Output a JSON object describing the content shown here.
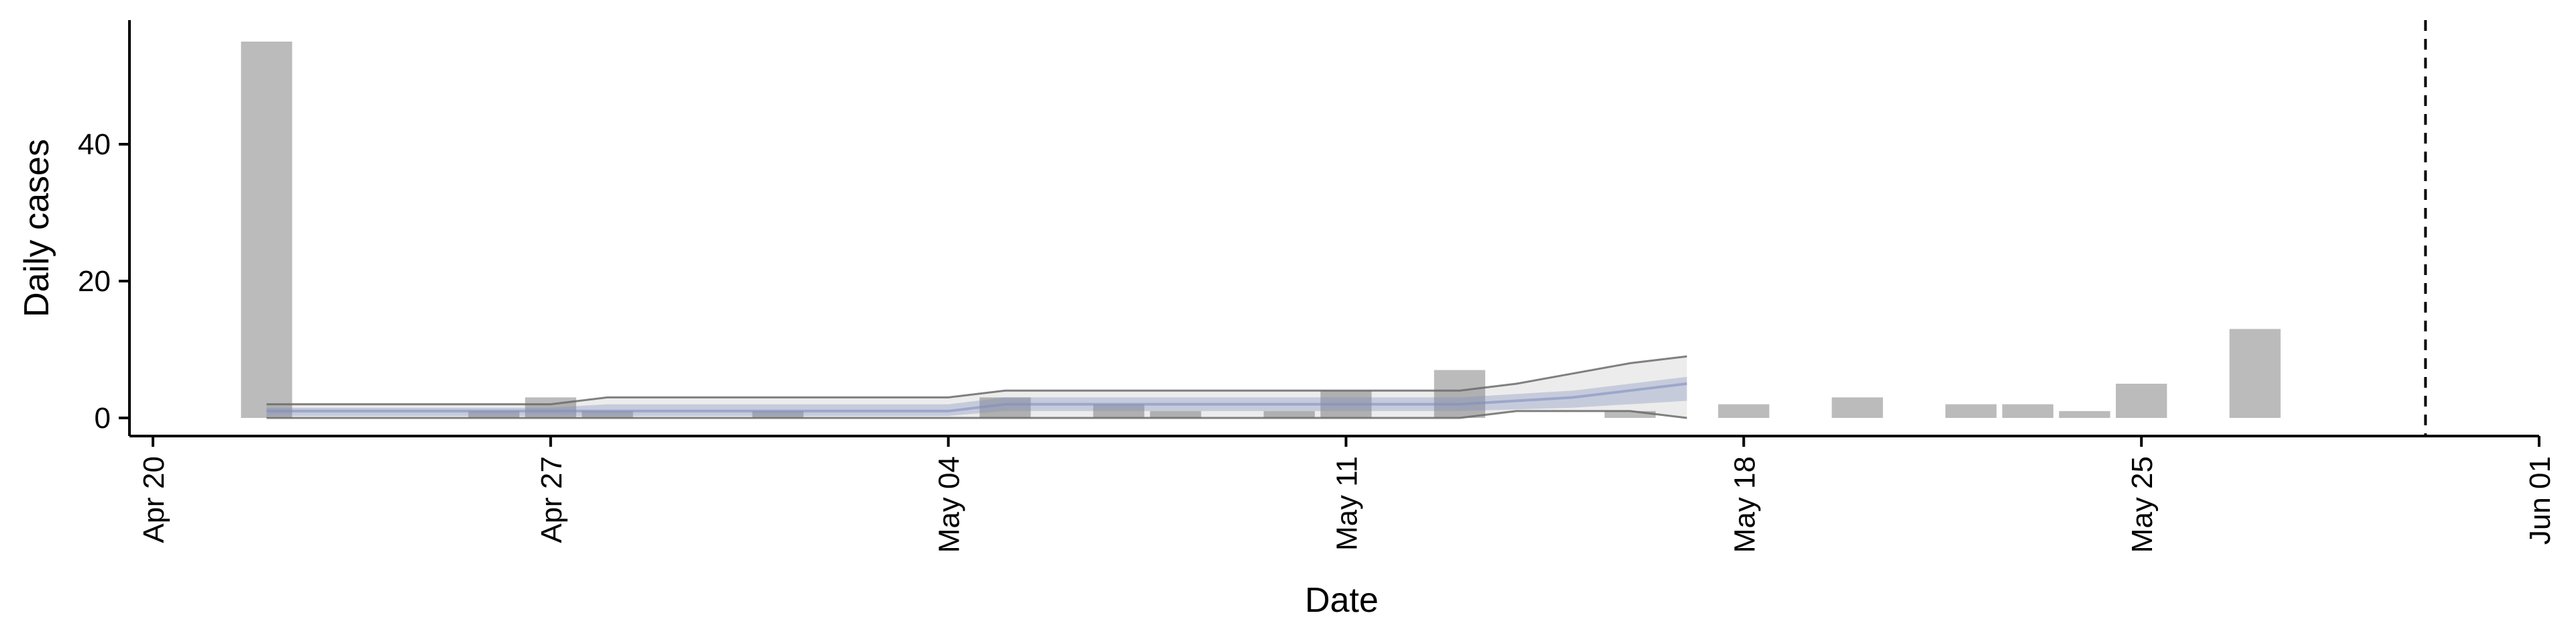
{
  "chart_data": {
    "type": "bar",
    "xlabel": "Date",
    "ylabel": "Daily cases",
    "x_ticks": [
      "Apr 20",
      "Apr 27",
      "May 04",
      "May 11",
      "May 18",
      "May 25",
      "Jun 01"
    ],
    "x_tick_dates": [
      "2020-04-20",
      "2020-04-27",
      "2020-05-04",
      "2020-05-11",
      "2020-05-18",
      "2020-05-25",
      "2020-06-01"
    ],
    "y_ticks": [
      0,
      20,
      40
    ],
    "xlim": [
      "2020-04-20",
      "2020-06-01"
    ],
    "ylim": [
      -2.5,
      58
    ],
    "grid": false,
    "bars": {
      "name": "Daily cases",
      "color": "#bbbbbb",
      "dates": [
        "2020-04-22",
        "2020-04-26",
        "2020-04-27",
        "2020-04-28",
        "2020-05-01",
        "2020-05-05",
        "2020-05-07",
        "2020-05-08",
        "2020-05-10",
        "2020-05-11",
        "2020-05-13",
        "2020-05-16",
        "2020-05-18",
        "2020-05-20",
        "2020-05-22",
        "2020-05-23",
        "2020-05-24",
        "2020-05-25",
        "2020-05-27"
      ],
      "values": [
        55,
        1,
        3,
        1,
        1,
        3,
        2,
        1,
        1,
        4,
        7,
        1,
        2,
        3,
        2,
        2,
        1,
        5,
        13
      ]
    },
    "estimate_band": {
      "color": "#8090bf",
      "dates": [
        "2020-04-22",
        "2020-04-27",
        "2020-04-28",
        "2020-05-04",
        "2020-05-05",
        "2020-05-13",
        "2020-05-15",
        "2020-05-16",
        "2020-05-17"
      ],
      "median": [
        1,
        1,
        1,
        1,
        2,
        2,
        3,
        4,
        5
      ],
      "lower": [
        0.3,
        0.3,
        0.3,
        0.3,
        1,
        1,
        1.5,
        2,
        2.5
      ],
      "upper": [
        1.5,
        1.5,
        2,
        2,
        3,
        3,
        4,
        5,
        6
      ]
    },
    "estimate_outer": {
      "color": "#6b6b6b",
      "dates": [
        "2020-04-22",
        "2020-04-27",
        "2020-04-28",
        "2020-05-04",
        "2020-05-05",
        "2020-05-13",
        "2020-05-14",
        "2020-05-16",
        "2020-05-17"
      ],
      "lower": [
        0,
        0,
        0,
        0,
        0,
        0,
        1,
        1,
        0
      ],
      "upper": [
        2,
        2,
        3,
        3,
        4,
        4,
        5,
        8,
        9
      ]
    },
    "vline": {
      "date": "2020-05-30",
      "style": "dashed",
      "color": "#000000"
    }
  }
}
